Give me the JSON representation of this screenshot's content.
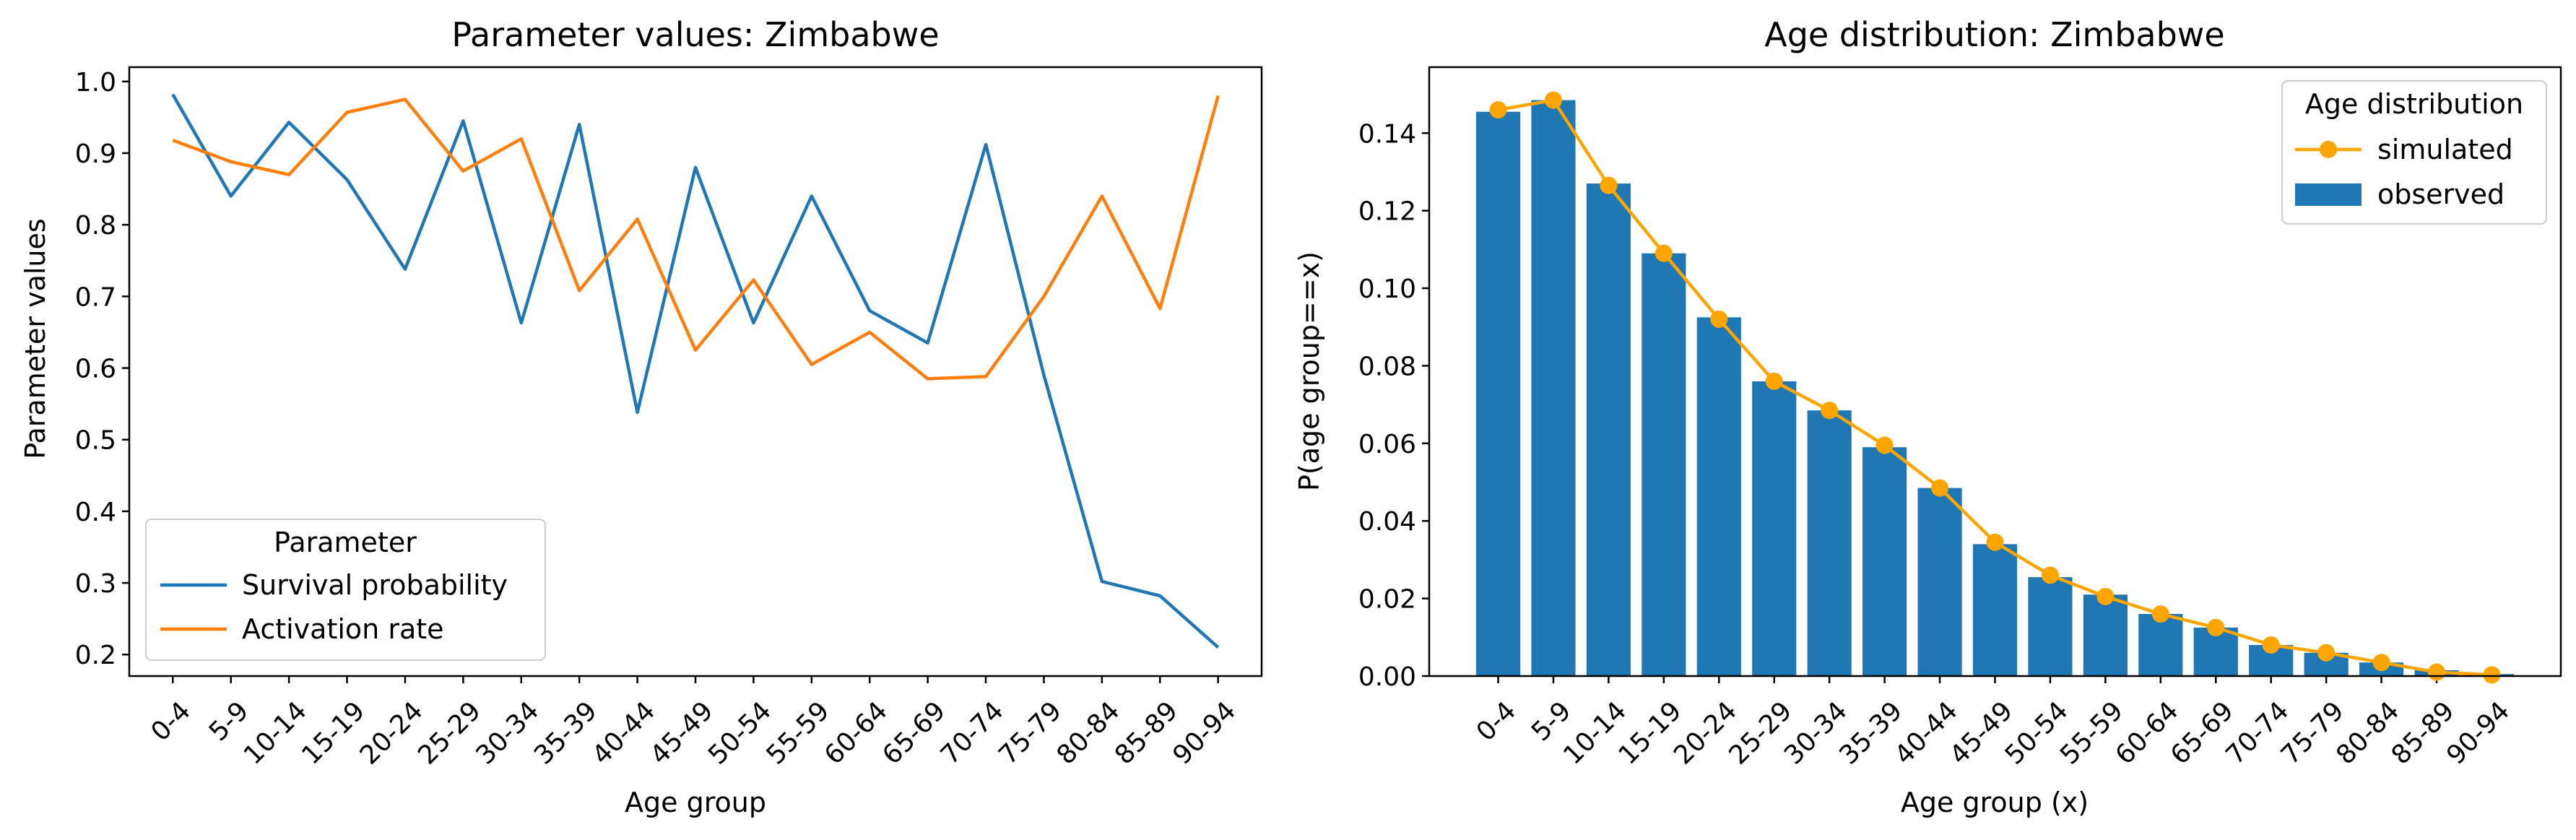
{
  "chart_data": [
    {
      "type": "line",
      "title": "Parameter values: Zimbabwe",
      "xlabel": "Age group",
      "ylabel": "Parameter values",
      "categories": [
        "0-4",
        "5-9",
        "10-14",
        "15-19",
        "20-24",
        "25-29",
        "30-34",
        "35-39",
        "40-44",
        "45-49",
        "50-54",
        "55-59",
        "60-64",
        "65-69",
        "70-74",
        "75-79",
        "80-84",
        "85-89",
        "90-94"
      ],
      "ylim": [
        0.17,
        1.02
      ],
      "yticks": [
        "0.2",
        "0.3",
        "0.4",
        "0.5",
        "0.6",
        "0.7",
        "0.8",
        "0.9",
        "1.0"
      ],
      "legend": {
        "title": "Parameter",
        "placement": "lower-left"
      },
      "grid": false,
      "series": [
        {
          "name": "Survival probability",
          "color": "#1f77b4",
          "values": [
            0.982,
            0.84,
            0.943,
            0.863,
            0.738,
            0.945,
            0.663,
            0.94,
            0.538,
            0.88,
            0.663,
            0.84,
            0.68,
            0.635,
            0.912,
            0.59,
            0.302,
            0.282,
            0.21
          ]
        },
        {
          "name": "Activation rate",
          "color": "#ff7f0e",
          "values": [
            0.918,
            0.888,
            0.87,
            0.957,
            0.975,
            0.875,
            0.92,
            0.708,
            0.808,
            0.625,
            0.723,
            0.605,
            0.65,
            0.585,
            0.588,
            0.7,
            0.84,
            0.683,
            0.98
          ]
        }
      ]
    },
    {
      "type": "bar",
      "title": "Age distribution: Zimbabwe",
      "xlabel": "Age group (x)",
      "ylabel": "P(age group==x)",
      "categories": [
        "0-4",
        "5-9",
        "10-14",
        "15-19",
        "20-24",
        "25-29",
        "30-34",
        "35-39",
        "40-44",
        "45-49",
        "50-54",
        "55-59",
        "60-64",
        "65-69",
        "70-74",
        "75-79",
        "80-84",
        "85-89",
        "90-94"
      ],
      "ylim": [
        0,
        0.157
      ],
      "yticks": [
        "0.00",
        "0.02",
        "0.04",
        "0.06",
        "0.08",
        "0.10",
        "0.12",
        "0.14"
      ],
      "legend": {
        "title": "Age distribution",
        "placement": "upper-right"
      },
      "grid": false,
      "series": [
        {
          "name": "observed",
          "kind": "bar",
          "color": "#1f77b4",
          "values": [
            0.1455,
            0.1485,
            0.127,
            0.109,
            0.0925,
            0.076,
            0.0685,
            0.059,
            0.0485,
            0.034,
            0.0255,
            0.021,
            0.016,
            0.0125,
            0.008,
            0.006,
            0.0035,
            0.0015,
            0.0005
          ]
        },
        {
          "name": "simulated",
          "kind": "line-marker",
          "color": "#ffa500",
          "values": [
            0.146,
            0.1485,
            0.1265,
            0.109,
            0.092,
            0.076,
            0.0685,
            0.0595,
            0.0485,
            0.0345,
            0.026,
            0.0205,
            0.016,
            0.0125,
            0.008,
            0.006,
            0.0035,
            0.001,
            0.0003
          ]
        }
      ]
    }
  ]
}
